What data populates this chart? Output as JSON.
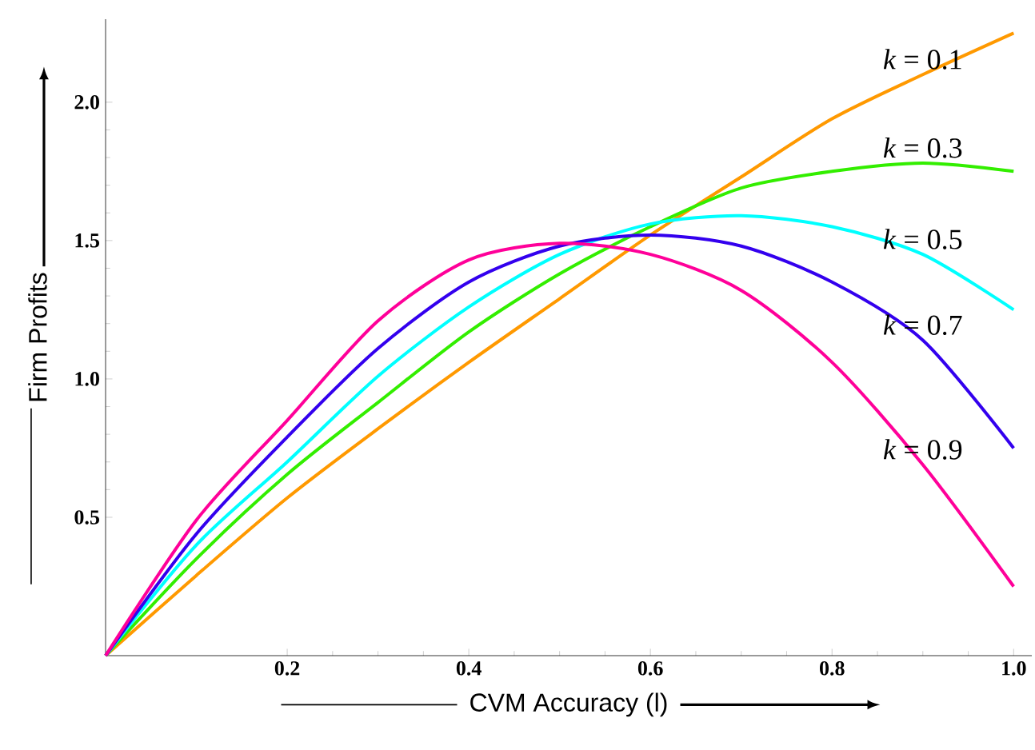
{
  "chart_data": {
    "type": "line",
    "xlabel": "CVM Accuracy (l)",
    "ylabel": "Firm  Profits",
    "x": [
      0,
      0.1,
      0.2,
      0.3,
      0.4,
      0.5,
      0.6,
      0.7,
      0.8,
      0.9,
      1.0
    ],
    "series": [
      {
        "name": "*k* = 0.1",
        "color": "#ff9900",
        "values": [
          0,
          0.29,
          0.57,
          0.82,
          1.06,
          1.29,
          1.52,
          1.73,
          1.94,
          2.1,
          2.25
        ]
      },
      {
        "name": "*k* = 0.3",
        "color": "#33ee00",
        "values": [
          0,
          0.35,
          0.655,
          0.915,
          1.17,
          1.38,
          1.55,
          1.69,
          1.75,
          1.78,
          1.75
        ]
      },
      {
        "name": "*k* = 0.5",
        "color": "#00ffff",
        "values": [
          0,
          0.4,
          0.7,
          1.01,
          1.26,
          1.45,
          1.56,
          1.59,
          1.55,
          1.45,
          1.25
        ]
      },
      {
        "name": "*k* = 0.7",
        "color": "#3300ee",
        "values": [
          0,
          0.44,
          0.79,
          1.11,
          1.35,
          1.48,
          1.52,
          1.48,
          1.35,
          1.14,
          0.75
        ]
      },
      {
        "name": "*k* = 0.9",
        "color": "#ff0099",
        "values": [
          0,
          0.49,
          0.85,
          1.21,
          1.43,
          1.49,
          1.45,
          1.32,
          1.06,
          0.69,
          0.25
        ]
      }
    ],
    "xlim": [
      0,
      1.02
    ],
    "ylim": [
      0,
      2.3
    ],
    "xticks": [
      0.2,
      0.4,
      0.6,
      0.8,
      {
        "value": 1.0,
        "label": "1.0"
      }
    ],
    "yticks": [
      0.5,
      {
        "value": 1.0,
        "label": "1.0"
      },
      1.5,
      {
        "value": 2.0,
        "label": "2.0"
      }
    ]
  }
}
